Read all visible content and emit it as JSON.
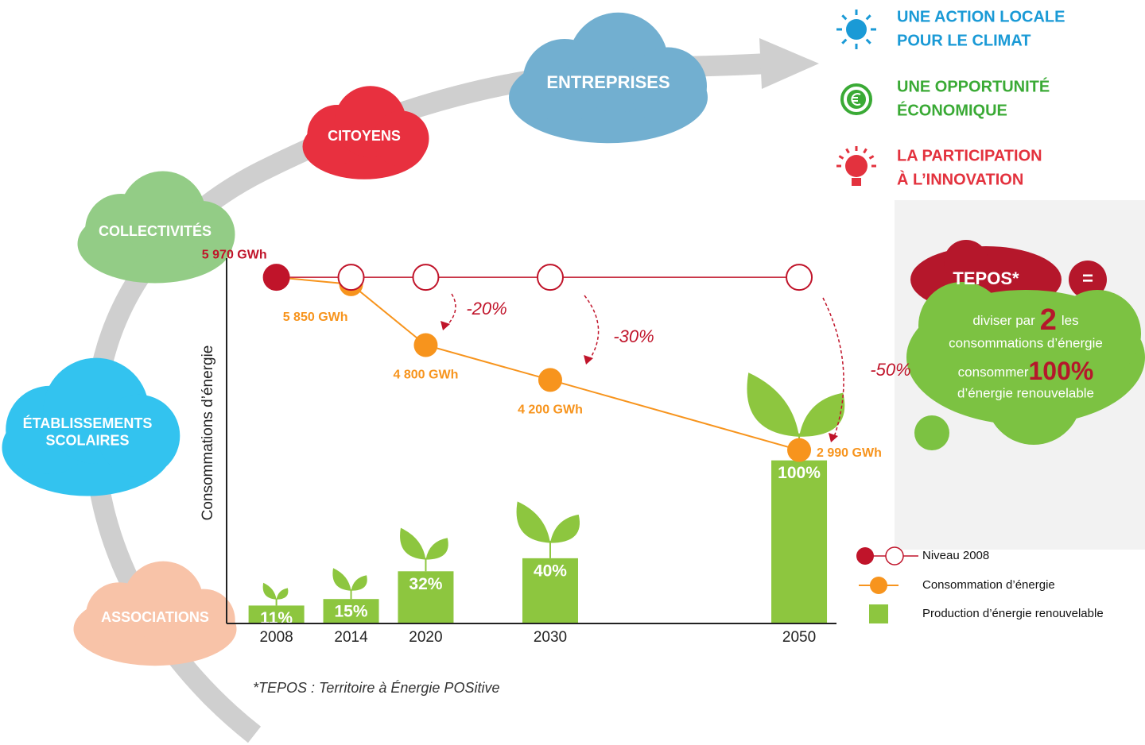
{
  "clouds": [
    {
      "lines": [
        "ENTREPRISES"
      ]
    },
    {
      "lines": [
        "CITOYENS"
      ]
    },
    {
      "lines": [
        "COLLECTIVITÉS"
      ]
    },
    {
      "lines": [
        "ÉTABLISSEMENTS",
        "SCOLAIRES"
      ]
    },
    {
      "lines": [
        "ASSOCIATIONS"
      ]
    }
  ],
  "benefits": [
    {
      "lines": [
        "UNE ACTION LOCALE",
        "POUR LE CLIMAT"
      ]
    },
    {
      "lines": [
        "UNE OPPORTUNITÉ",
        "ÉCONOMIQUE"
      ]
    },
    {
      "lines": [
        "LA PARTICIPATION",
        "À L’INNOVATION"
      ]
    }
  ],
  "tepos": {
    "title": "TEPOS*",
    "equals": "=",
    "line1": [
      "diviser par",
      "2",
      "les"
    ],
    "line2": "consommations d’énergie",
    "line3": [
      "consommer",
      "100%"
    ],
    "line4": "d’énergie renouvelable"
  },
  "chart_data": {
    "type": "combo",
    "y_label": "Consommations d’énergie",
    "x": [
      2008,
      2014,
      2020,
      2030,
      2050
    ],
    "xlim": [
      2004,
      2053
    ],
    "xticks": [
      2008,
      2014,
      2020,
      2030,
      2050
    ],
    "ylim": [
      0,
      6300
    ],
    "y2lim": [
      0,
      224
    ],
    "series": [
      {
        "name": "Niveau 2008",
        "kind": "level",
        "color": "#c0142a",
        "values": [
          5970,
          5970,
          5970,
          5970,
          5970
        ],
        "value_labels": [
          "5 970 GWh",
          null,
          null,
          null,
          null
        ]
      },
      {
        "name": "Consommation d’énergie",
        "kind": "line",
        "color": "#f7941d",
        "values": [
          5970,
          5850,
          4800,
          4200,
          2990
        ],
        "value_labels": [
          null,
          "5 850 GWh",
          "4 800 GWh",
          "4 200 GWh",
          "2 990 GWh"
        ]
      },
      {
        "name": "Production d’énergie renouvelable",
        "kind": "bar",
        "axis": "y2",
        "color": "#8dc63f",
        "values": [
          11,
          15,
          32,
          40,
          100
        ],
        "value_labels": [
          "11%",
          "15%",
          "32%",
          "40%",
          "100%"
        ]
      }
    ],
    "annotations": [
      "-20%",
      "-30%",
      "-50%"
    ],
    "legend": "bottom-right"
  },
  "footnote": "*TEPOS : Territoire à Énergie POSitive"
}
